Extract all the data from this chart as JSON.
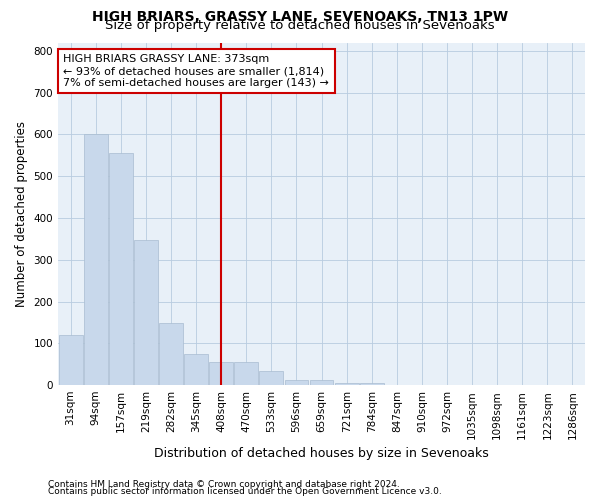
{
  "title": "HIGH BRIARS, GRASSY LANE, SEVENOAKS, TN13 1PW",
  "subtitle": "Size of property relative to detached houses in Sevenoaks",
  "xlabel": "Distribution of detached houses by size in Sevenoaks",
  "ylabel": "Number of detached properties",
  "categories": [
    "31sqm",
    "94sqm",
    "157sqm",
    "219sqm",
    "282sqm",
    "345sqm",
    "408sqm",
    "470sqm",
    "533sqm",
    "596sqm",
    "659sqm",
    "721sqm",
    "784sqm",
    "847sqm",
    "910sqm",
    "972sqm",
    "1035sqm",
    "1098sqm",
    "1161sqm",
    "1223sqm",
    "1286sqm"
  ],
  "values": [
    120,
    600,
    555,
    348,
    148,
    75,
    55,
    55,
    33,
    12,
    12,
    5,
    5,
    0,
    0,
    0,
    0,
    0,
    0,
    0,
    0
  ],
  "bar_color": "#c8d8eb",
  "bar_edgecolor": "#a8bcd0",
  "red_line_x": 6.0,
  "red_line_color": "#cc0000",
  "annotation_text": "HIGH BRIARS GRASSY LANE: 373sqm\n← 93% of detached houses are smaller (1,814)\n7% of semi-detached houses are larger (143) →",
  "annotation_box_color": "#ffffff",
  "annotation_box_edgecolor": "#cc0000",
  "ylim": [
    0,
    820
  ],
  "yticks": [
    0,
    100,
    200,
    300,
    400,
    500,
    600,
    700,
    800
  ],
  "background_color": "#e8f0f8",
  "footer_line1": "Contains HM Land Registry data © Crown copyright and database right 2024.",
  "footer_line2": "Contains public sector information licensed under the Open Government Licence v3.0.",
  "title_fontsize": 10,
  "subtitle_fontsize": 9.5,
  "xlabel_fontsize": 9,
  "ylabel_fontsize": 8.5,
  "annot_fontsize": 8,
  "footer_fontsize": 6.5,
  "tick_fontsize": 7.5
}
